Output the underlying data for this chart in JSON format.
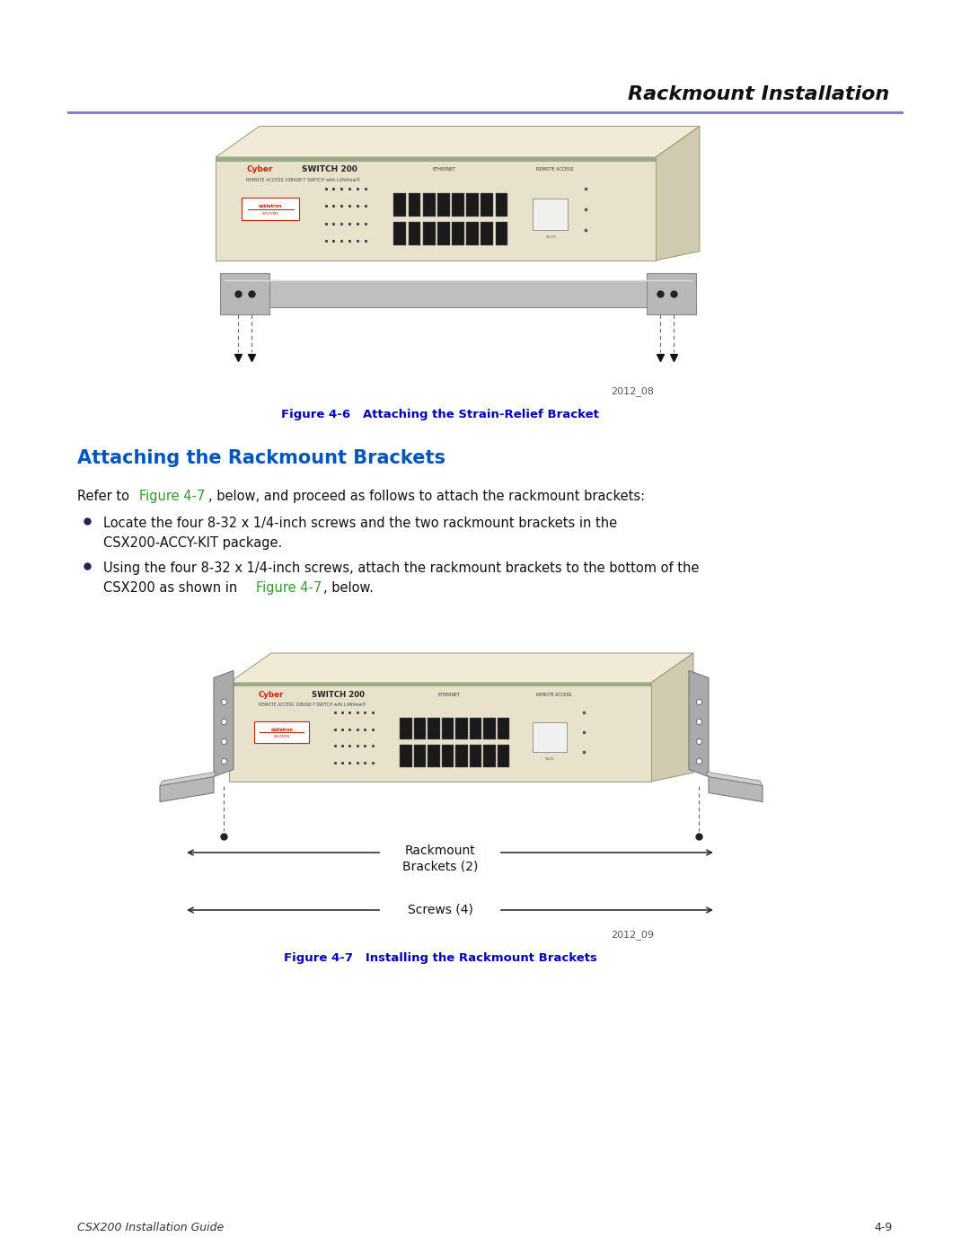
{
  "bg_color": "#ffffff",
  "page_width": 10.8,
  "page_height": 13.97,
  "header_title": "Rackmount Installation",
  "header_line_color": "#7777cc",
  "fig6_caption": "Figure 4-6   Attaching the Strain-Relief Bracket",
  "fig6_caption_color": "#0000bb",
  "section_title": "Attaching the Rackmount Brackets",
  "section_title_color": "#0055bb",
  "fig7_caption": "Figure 4-7   Installing the Rackmount Brackets",
  "fig7_caption_color": "#0000bb",
  "fig6_code": "2012_08",
  "fig7_code": "2012_09",
  "footer_left": "CSX200 Installation Guide",
  "footer_right": "4-9",
  "device_body": "#e8e2cc",
  "device_side": "#d0cab0",
  "device_top": "#f0ead6",
  "device_stripe": "#aaaaaa",
  "bracket_gray": "#aaaaaa",
  "bracket_dark": "#777777",
  "text_color": "#111111",
  "link_color": "#339933"
}
